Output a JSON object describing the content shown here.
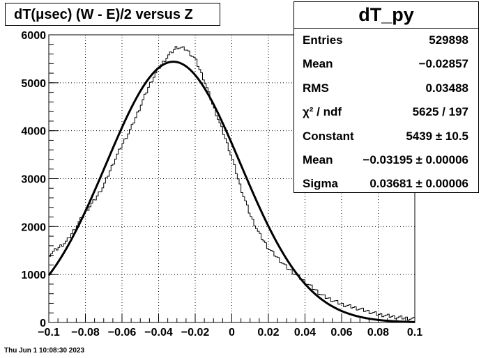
{
  "header": {
    "title": "dT(μsec) (W - E)/2 versus Z"
  },
  "stats": {
    "title": "dT_py",
    "rows": [
      {
        "key": "Entries",
        "value": "529898"
      },
      {
        "key": "Mean",
        "value": "−0.02857"
      },
      {
        "key": "RMS",
        "value": "0.03488"
      },
      {
        "key": "χ² / ndf",
        "value": "5625 / 197"
      },
      {
        "key": "Constant",
        "value": "5439 ± 10.5"
      },
      {
        "key": "Mean",
        "value": "−0.03195 ± 0.00006"
      },
      {
        "key": "Sigma",
        "value": "0.03681 ± 0.00006"
      }
    ]
  },
  "footer": {
    "timestamp": "Thu Jun  1 10:08:30 2023"
  },
  "chart_data": {
    "type": "line",
    "title": "dT(μsec) (W - E)/2 versus Z",
    "xlabel": "",
    "ylabel": "",
    "xlim": [
      -0.1,
      0.1
    ],
    "ylim": [
      0,
      6000
    ],
    "xticks": [
      -0.1,
      -0.08,
      -0.06,
      -0.04,
      -0.02,
      0,
      0.02,
      0.04,
      0.06,
      0.08,
      0.1
    ],
    "xtick_labels": [
      "−0.1",
      "−0.08",
      "−0.06",
      "−0.04",
      "−0.02",
      "0",
      "0.02",
      "0.04",
      "0.06",
      "0.08",
      "0.1"
    ],
    "yticks": [
      0,
      1000,
      2000,
      3000,
      4000,
      5000,
      6000
    ],
    "ytick_labels": [
      "0",
      "1000",
      "2000",
      "3000",
      "4000",
      "5000",
      "6000"
    ],
    "grid": true,
    "series": [
      {
        "kind": "histogram",
        "x": [
          -0.1,
          -0.09,
          -0.08,
          -0.075,
          -0.07,
          -0.065,
          -0.06,
          -0.055,
          -0.05,
          -0.045,
          -0.04,
          -0.035,
          -0.03,
          -0.025,
          -0.02,
          -0.015,
          -0.01,
          -0.005,
          0,
          0.005,
          0.01,
          0.015,
          0.02,
          0.03,
          0.04,
          0.05,
          0.06,
          0.07,
          0.08,
          0.09,
          0.1
        ],
        "y": [
          1400,
          1700,
          2300,
          2550,
          2850,
          3300,
          3700,
          4050,
          4500,
          4950,
          5300,
          5550,
          5750,
          5700,
          5500,
          5050,
          4500,
          4000,
          3450,
          2800,
          2250,
          1850,
          1550,
          1150,
          850,
          550,
          380,
          280,
          170,
          110,
          70
        ]
      },
      {
        "kind": "gaussian-fit",
        "constant": 5439,
        "mean": -0.03195,
        "sigma": 0.03681
      }
    ]
  }
}
